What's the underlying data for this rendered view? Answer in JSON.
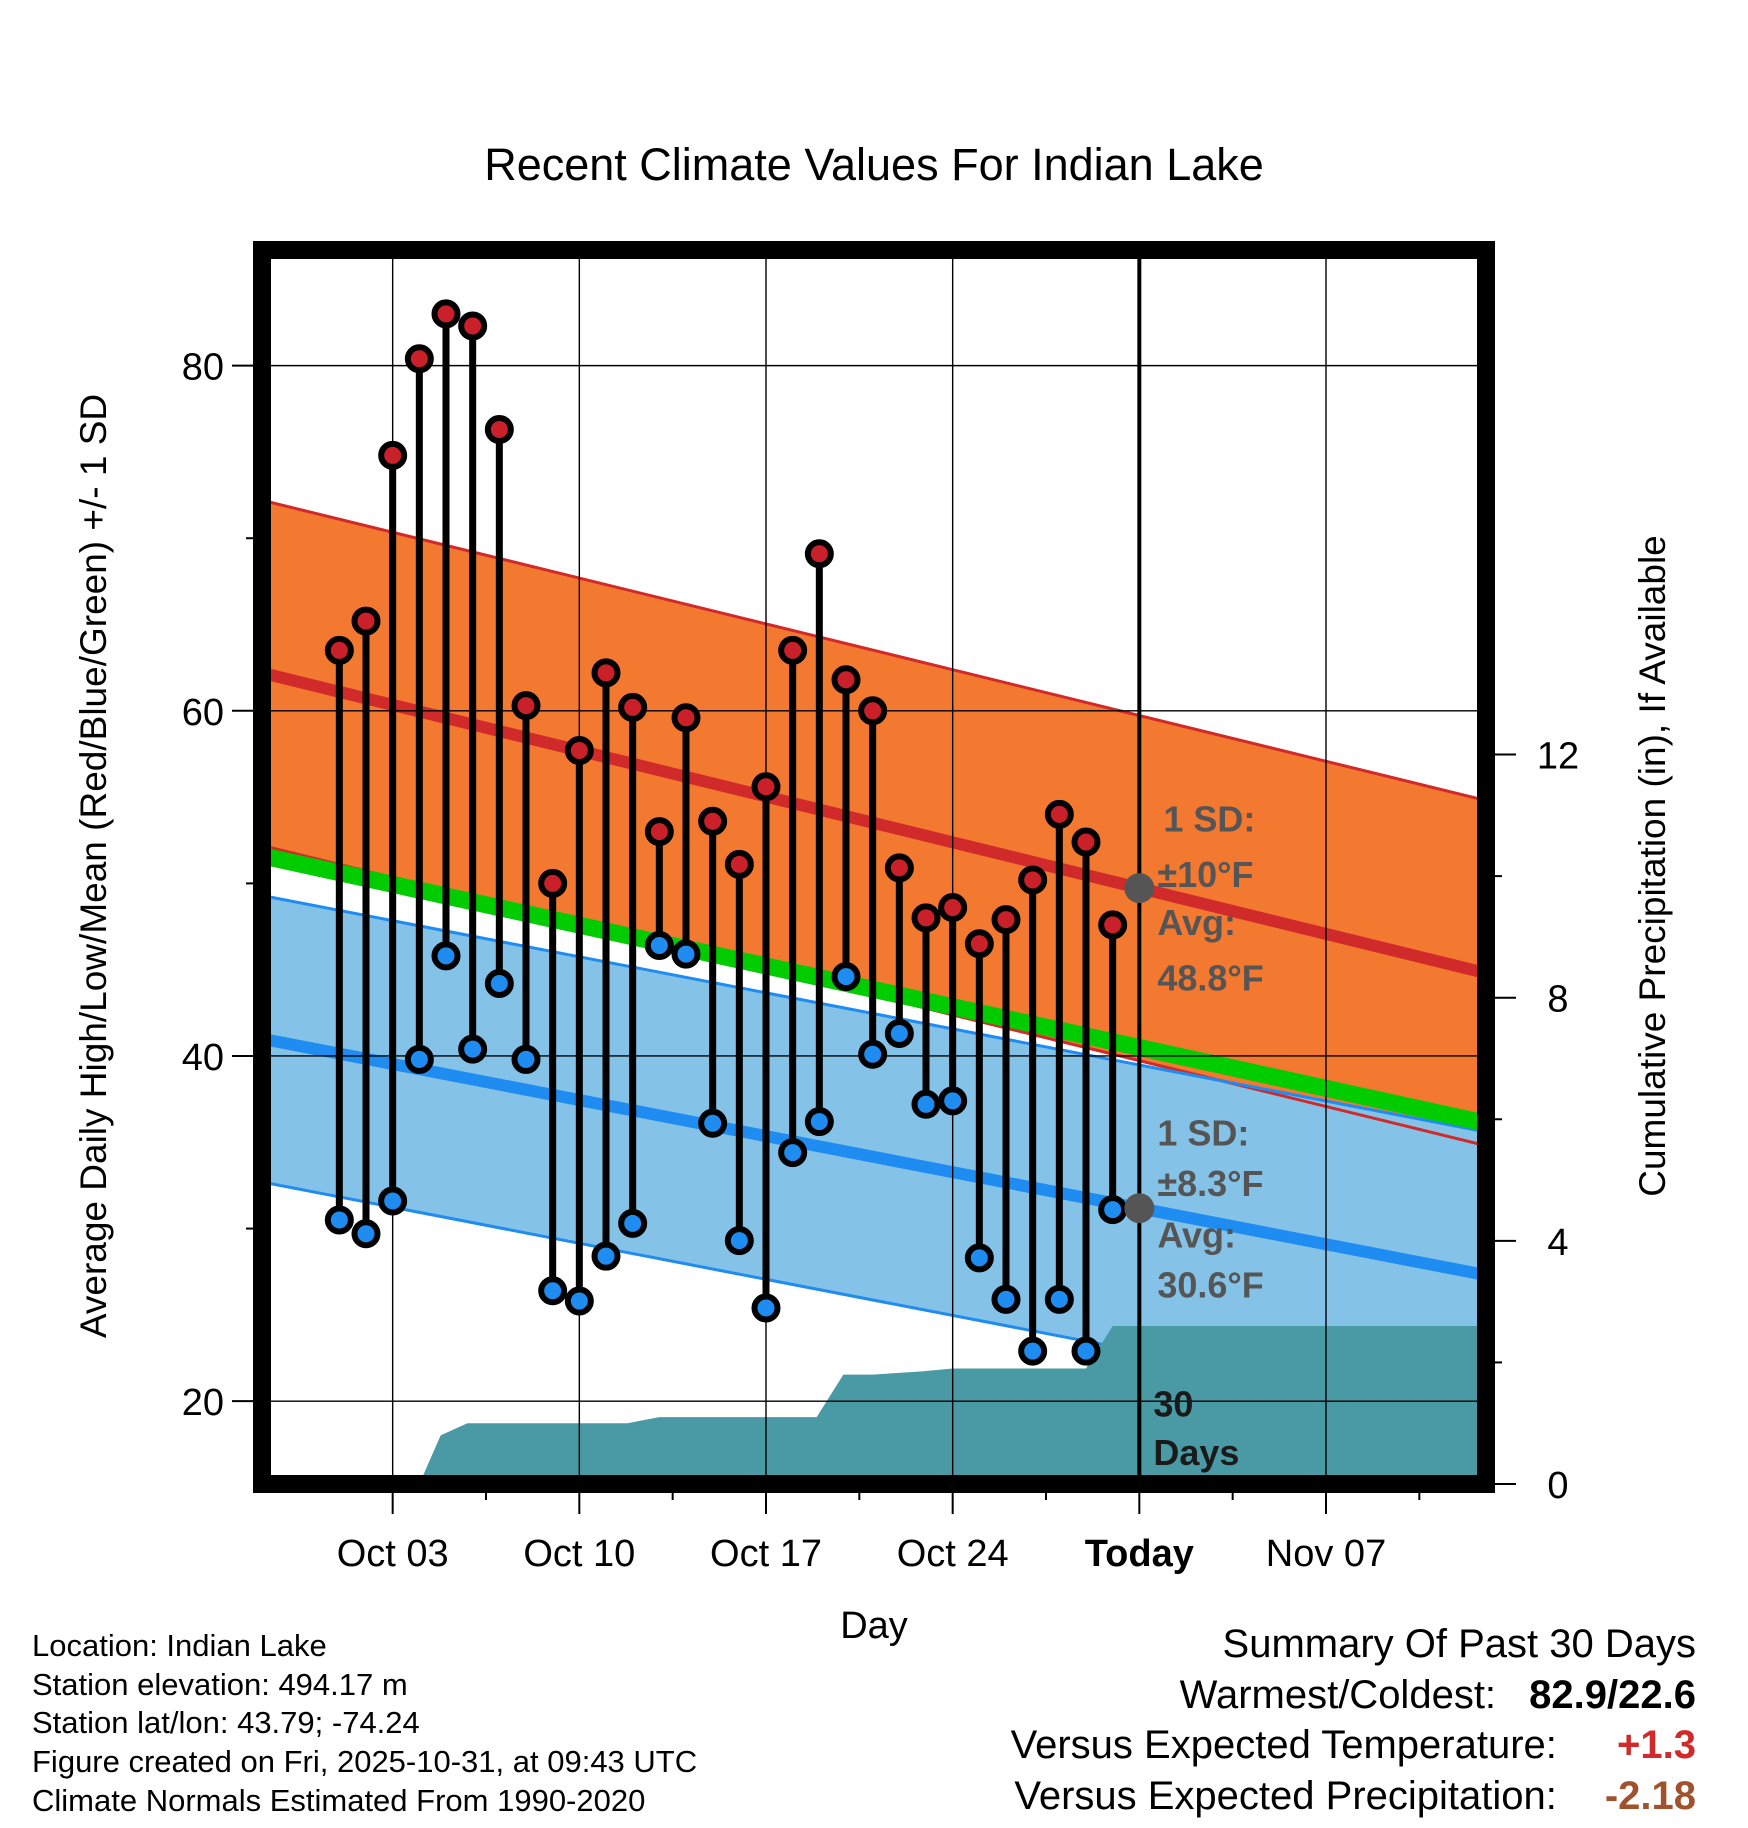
{
  "chart_data": {
    "type": "line",
    "title": "Recent Climate Values For Indian Lake",
    "xlabel": "Day",
    "ylabel": "Average Daily High/Low/Mean (Red/Blue/Green) +/- 1 SD",
    "y2label": "Cumulative Precipitation (in), If Available",
    "ylim": [
      15.2,
      86.7
    ],
    "y2lim": [
      0,
      20.3
    ],
    "xlim": [
      -2.9,
      43.0
    ],
    "yticks": [
      20,
      40,
      60,
      80
    ],
    "y2ticks": [
      0,
      4,
      8,
      12
    ],
    "xticks": [
      {
        "day": 2,
        "label": "Oct 03"
      },
      {
        "day": 9,
        "label": "Oct 10"
      },
      {
        "day": 16,
        "label": "Oct 17"
      },
      {
        "day": 23,
        "label": "Oct 24"
      },
      {
        "day": 30,
        "label": "Today"
      },
      {
        "day": 37,
        "label": "Nov 07"
      }
    ],
    "today_day": 30,
    "days": [
      0,
      1,
      2,
      3,
      4,
      5,
      6,
      7,
      8,
      9,
      10,
      11,
      12,
      13,
      14,
      15,
      16,
      17,
      18,
      19,
      20,
      21,
      22,
      23,
      24,
      25,
      26,
      27,
      28,
      29
    ],
    "highs": [
      63.5,
      65.2,
      74.8,
      80.4,
      83.0,
      82.3,
      76.3,
      60.3,
      50.0,
      57.7,
      62.2,
      60.2,
      53.0,
      59.6,
      53.6,
      51.1,
      55.6,
      63.5,
      69.1,
      61.8,
      60.0,
      50.9,
      48.0,
      48.6,
      46.5,
      47.9,
      50.2,
      54.0,
      52.4,
      47.6
    ],
    "lows": [
      30.5,
      29.7,
      31.6,
      39.8,
      45.8,
      40.4,
      44.2,
      39.8,
      26.4,
      25.8,
      28.4,
      30.3,
      46.4,
      45.9,
      36.1,
      29.3,
      25.4,
      34.4,
      36.2,
      44.6,
      40.1,
      41.3,
      37.2,
      37.4,
      28.3,
      25.9,
      22.9,
      25.9,
      22.9,
      31.1
    ],
    "normal_high": {
      "start": 62.2,
      "end": 44.8,
      "sd": 10
    },
    "normal_low": {
      "start": 41.0,
      "end": 27.3,
      "sd": 8.3
    },
    "normal_mean": {
      "start": 51.6,
      "end": 36.1
    },
    "precip_cumulative": [
      {
        "day": 3.0,
        "value": 0
      },
      {
        "day": 3.8,
        "value": 0.8
      },
      {
        "day": 4.8,
        "value": 1.0
      },
      {
        "day": 9.0,
        "value": 1.0
      },
      {
        "day": 10.8,
        "value": 1.0
      },
      {
        "day": 12.0,
        "value": 1.1
      },
      {
        "day": 17.9,
        "value": 1.1
      },
      {
        "day": 18.9,
        "value": 1.8
      },
      {
        "day": 20.0,
        "value": 1.8
      },
      {
        "day": 21.8,
        "value": 1.85
      },
      {
        "day": 23.0,
        "value": 1.9
      },
      {
        "day": 28.0,
        "value": 1.9
      },
      {
        "day": 29.0,
        "value": 2.6
      },
      {
        "day": 30.0,
        "value": 2.6
      },
      {
        "day": 43.0,
        "value": 2.6
      }
    ],
    "annotations": {
      "high_sd_l1": "1 SD:",
      "high_sd_l2": "±10°F",
      "high_avg_l1": "Avg:",
      "high_avg_l2": "48.8°F",
      "low_sd_l1": "1 SD:",
      "low_sd_l2": "±8.3°F",
      "low_avg_l1": "Avg:",
      "low_avg_l2": "30.6°F",
      "days_l1": "30",
      "days_l2": "Days"
    },
    "colors": {
      "high_band": "#f47930",
      "high_line": "#d02a2a",
      "high_dot": "#c9202a",
      "low_band": "#85c2e8",
      "low_line": "#1e8cf0",
      "low_dot": "#1e8cf0",
      "mean_line": "#00cc00",
      "precip": "#4a9aa5",
      "annot": "#555555"
    }
  },
  "footer": {
    "location": "Location: Indian Lake",
    "elevation": "Station elevation: 494.17 m",
    "latlon": "Station lat/lon: 43.79; -74.24",
    "created": "Figure created on Fri, 2025-10-31, at 09:43 UTC",
    "normals": "Climate Normals Estimated From 1990-2020"
  },
  "summary": {
    "title": "Summary Of Past 30 Days",
    "warmest_label": "Warmest/Coldest:",
    "warmest_value": "82.9/22.6",
    "temp_label": "Versus Expected Temperature:",
    "temp_value": "+1.3",
    "temp_color": "#d02a2a",
    "precip_label": "Versus Expected Precipitation:",
    "precip_value": "-2.18",
    "precip_color": "#a0522d"
  }
}
